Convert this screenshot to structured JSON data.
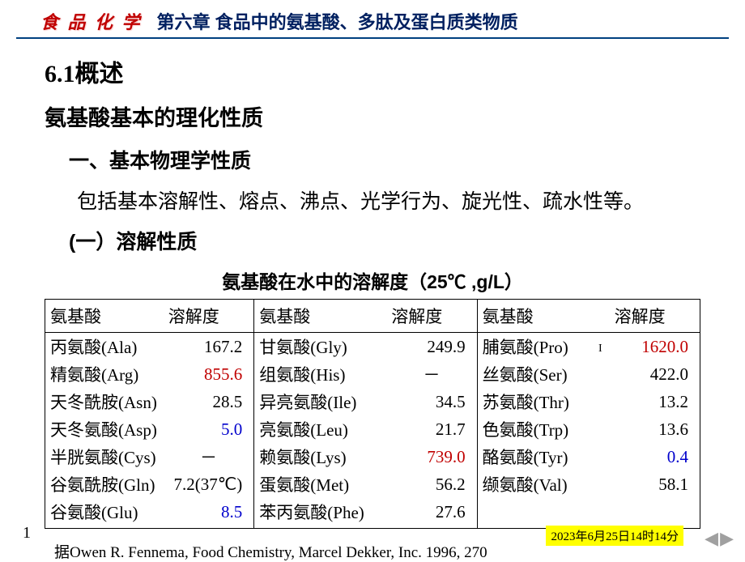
{
  "header": {
    "left": "食 品 化 学",
    "right": "第六章 食品中的氨基酸、多肽及蛋白质类物质"
  },
  "section_num": "6.1概述",
  "subtitle": "氨基酸基本的理化性质",
  "item1": "一、基本物理学性质",
  "para1": "包括基本溶解性、熔点、沸点、光学行为、旋光性、疏水性等。",
  "item1a": "(一）溶解性质",
  "table_caption": "氨基酸在水中的溶解度（25℃ ,g/L）",
  "table": {
    "headers": [
      "氨基酸",
      "溶解度",
      "氨基酸",
      "溶解度",
      "氨基酸",
      "溶解度"
    ],
    "rows": [
      [
        {
          "name": "丙氨酸(Ala)",
          "val": "167.2",
          "color": ""
        },
        {
          "name": "甘氨酸(Gly)",
          "val": "249.9",
          "color": ""
        },
        {
          "name": "脯氨酸(Pro)",
          "val": "1620.0",
          "color": "red"
        }
      ],
      [
        {
          "name": "精氨酸(Arg)",
          "val": "855.6",
          "color": "red"
        },
        {
          "name": "组氨酸(His)",
          "val": "－",
          "color": "",
          "center": true
        },
        {
          "name": "丝氨酸(Ser)",
          "val": "422.0",
          "color": ""
        }
      ],
      [
        {
          "name": "天冬酰胺(Asn)",
          "val": "28.5",
          "color": ""
        },
        {
          "name": "异亮氨酸(Ile)",
          "val": "34.5",
          "color": ""
        },
        {
          "name": "苏氨酸(Thr)",
          "val": "13.2",
          "color": ""
        }
      ],
      [
        {
          "name": "天冬氨酸(Asp)",
          "val": "5.0",
          "color": "blue"
        },
        {
          "name": "亮氨酸(Leu)",
          "val": "21.7",
          "color": ""
        },
        {
          "name": "色氨酸(Trp)",
          "val": "13.6",
          "color": ""
        }
      ],
      [
        {
          "name": "半胱氨酸(Cys)",
          "val": "－",
          "color": "",
          "center": true
        },
        {
          "name": "赖氨酸(Lys)",
          "val": "739.0",
          "color": "red"
        },
        {
          "name": "酪氨酸(Tyr)",
          "val": "0.4",
          "color": "blue"
        }
      ],
      [
        {
          "name": "谷氨酰胺(Gln)",
          "val": "7.2(37℃)",
          "color": ""
        },
        {
          "name": "蛋氨酸(Met)",
          "val": "56.2",
          "color": ""
        },
        {
          "name": "缬氨酸(Val)",
          "val": "58.1",
          "color": ""
        }
      ],
      [
        {
          "name": "谷氨酸(Glu)",
          "val": "8.5",
          "color": "blue"
        },
        {
          "name": "苯丙氨酸(Phe)",
          "val": "27.6",
          "color": ""
        },
        {
          "name": "",
          "val": "",
          "color": ""
        }
      ]
    ]
  },
  "citation": "据Owen R. Fennema, Food Chemistry,  Marcel Dekker, Inc. 1996, 270",
  "page_num": "1",
  "timestamp": "2023年6月25日14时14分",
  "nav": {
    "prev": "◀",
    "next": "▶"
  },
  "caret_dot": "·",
  "caret_marker": "I"
}
